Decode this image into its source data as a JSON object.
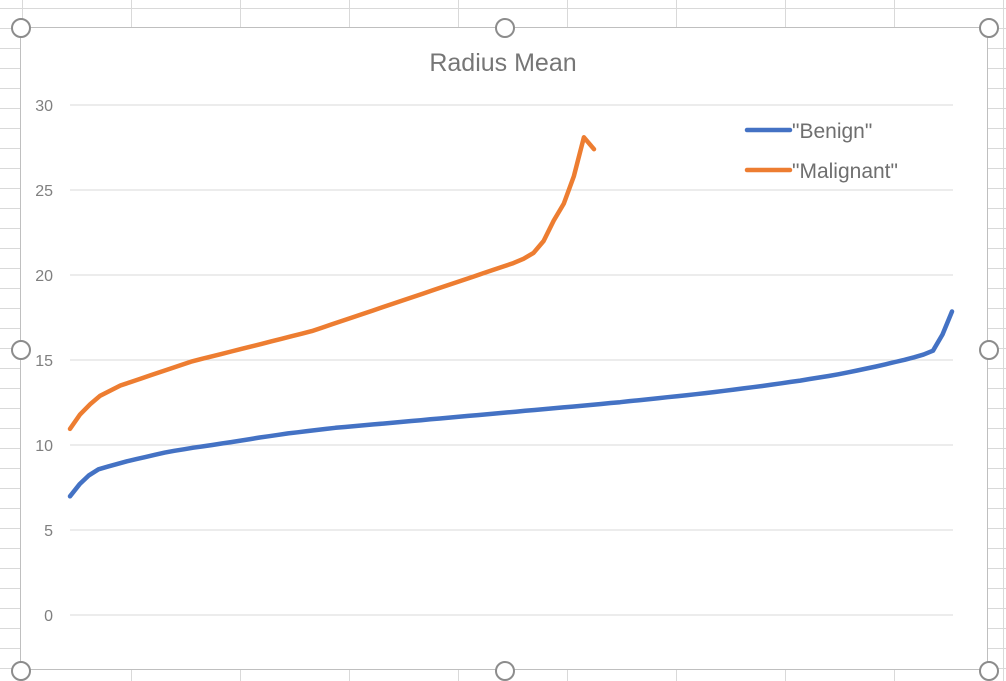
{
  "chart_data": {
    "type": "line",
    "title": "Radius Mean",
    "xlabel": "",
    "ylabel": "",
    "ylim": [
      0,
      30
    ],
    "yticks": [
      0,
      5,
      10,
      15,
      20,
      25,
      30
    ],
    "grid": true,
    "legend_position": "top-right",
    "series": [
      {
        "name": "\"Benign\"",
        "color": "#4472C4",
        "values": [
          6.98,
          7.69,
          8.22,
          8.57,
          8.73,
          8.89,
          9.04,
          9.17,
          9.3,
          9.43,
          9.55,
          9.66,
          9.75,
          9.84,
          9.92,
          10.0,
          10.09,
          10.17,
          10.26,
          10.35,
          10.44,
          10.52,
          10.6,
          10.68,
          10.75,
          10.82,
          10.88,
          10.95,
          11.01,
          11.06,
          11.11,
          11.16,
          11.21,
          11.26,
          11.31,
          11.36,
          11.41,
          11.46,
          11.51,
          11.56,
          11.61,
          11.66,
          11.71,
          11.76,
          11.81,
          11.86,
          11.91,
          11.96,
          12.01,
          12.06,
          12.11,
          12.16,
          12.21,
          12.26,
          12.31,
          12.36,
          12.41,
          12.47,
          12.52,
          12.58,
          12.63,
          12.69,
          12.75,
          12.81,
          12.87,
          12.93,
          12.99,
          13.05,
          13.12,
          13.19,
          13.26,
          13.33,
          13.4,
          13.47,
          13.55,
          13.63,
          13.71,
          13.79,
          13.88,
          13.97,
          14.06,
          14.16,
          14.27,
          14.38,
          14.5,
          14.62,
          14.75,
          14.88,
          15.01,
          15.16,
          15.32,
          15.55,
          16.5,
          17.85
        ]
      },
      {
        "name": "\"Malignant\"",
        "color": "#ED7D31",
        "values": [
          10.95,
          11.8,
          12.4,
          12.9,
          13.2,
          13.5,
          13.7,
          13.9,
          14.1,
          14.3,
          14.5,
          14.7,
          14.9,
          15.05,
          15.2,
          15.35,
          15.5,
          15.65,
          15.8,
          15.95,
          16.1,
          16.25,
          16.4,
          16.55,
          16.7,
          16.9,
          17.1,
          17.3,
          17.5,
          17.7,
          17.9,
          18.1,
          18.3,
          18.5,
          18.7,
          18.9,
          19.1,
          19.3,
          19.5,
          19.7,
          19.9,
          20.1,
          20.3,
          20.5,
          20.7,
          20.95,
          21.3,
          22.0,
          23.2,
          24.2,
          25.8,
          28.1,
          27.4
        ]
      }
    ]
  }
}
